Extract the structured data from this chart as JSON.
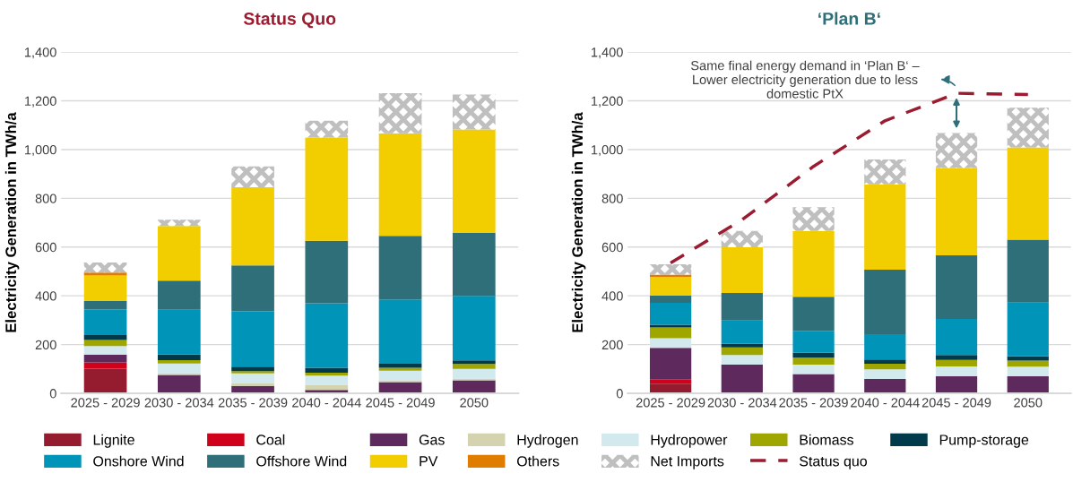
{
  "chart_data": [
    {
      "type": "bar",
      "stacked": true,
      "title": "Status Quo",
      "ylabel": "Electricity Generation in TWh/a",
      "categories": [
        "2025 - 2029",
        "2030 - 2034",
        "2035 - 2039",
        "2040 - 2044",
        "2045 - 2049",
        "2050"
      ],
      "ylim": [
        0,
        1400
      ],
      "yticks": [
        0,
        {
          "value": 200,
          "label": "200"
        },
        {
          "value": 400,
          "label": "400"
        },
        {
          "value": 600,
          "label": "600"
        },
        {
          "value": 800,
          "label": "800"
        },
        {
          "value": 1000,
          "label": "1,000"
        },
        {
          "value": 1200,
          "label": "1,200"
        },
        {
          "value": 1400,
          "label": "1,400"
        }
      ],
      "grid": "y",
      "legend": "bottom",
      "series": [
        {
          "name": "Lignite",
          "color": "#951b2e",
          "values": [
            101,
            0,
            0,
            0,
            0,
            0
          ]
        },
        {
          "name": "Coal",
          "color": "#d0021b",
          "values": [
            26,
            0,
            0,
            0,
            0,
            0
          ]
        },
        {
          "name": "Gas",
          "color": "#5e2a5e",
          "values": [
            32,
            75,
            30,
            14,
            46,
            53
          ]
        },
        {
          "name": "Hydrogen",
          "color": "#d3d3b0",
          "values": [
            0,
            7,
            12,
            21,
            7,
            7
          ]
        },
        {
          "name": "Hydropower",
          "color": "#d2e9ee",
          "values": [
            35,
            40,
            40,
            38,
            40,
            40
          ]
        },
        {
          "name": "Biomass",
          "color": "#9fa600",
          "values": [
            25,
            14,
            9,
            12,
            12,
            20
          ]
        },
        {
          "name": "Pump-storage",
          "color": "#003a4b",
          "values": [
            20,
            23,
            18,
            20,
            16,
            15
          ]
        },
        {
          "name": "Onshore Wind",
          "color": "#0094b8",
          "values": [
            105,
            184,
            227,
            264,
            264,
            265
          ]
        },
        {
          "name": "Offshore Wind",
          "color": "#2e6f7a",
          "values": [
            35,
            119,
            189,
            257,
            261,
            258
          ]
        },
        {
          "name": "PV",
          "color": "#f2ce00",
          "values": [
            104,
            224,
            320,
            423,
            421,
            424
          ]
        },
        {
          "name": "Others",
          "color": "#e07c00",
          "values": [
            12,
            0,
            0,
            0,
            0,
            0
          ]
        },
        {
          "name": "Net Imports",
          "color": "#bfbfbf",
          "values": [
            42,
            26,
            86,
            69,
            164,
            144
          ]
        }
      ]
    },
    {
      "type": "bar",
      "stacked": true,
      "title": "‘Plan B‘",
      "ylabel": "Electricity Generation in TWh/a",
      "categories": [
        "2025 - 2029",
        "2030 - 2034",
        "2035 - 2039",
        "2040 - 2044",
        "2045 - 2049",
        "2050"
      ],
      "ylim": [
        0,
        1400
      ],
      "yticks": [
        0,
        {
          "value": 200,
          "label": "200"
        },
        {
          "value": 400,
          "label": "400"
        },
        {
          "value": 600,
          "label": "600"
        },
        {
          "value": 800,
          "label": "800"
        },
        {
          "value": 1000,
          "label": "1,000"
        },
        {
          "value": 1200,
          "label": "1,200"
        },
        {
          "value": 1400,
          "label": "1,400"
        }
      ],
      "grid": "y",
      "legend": "bottom",
      "annotations": [
        "Same final energy demand in ‘Plan B‘ –\nLower electricity generation due to less\ndomestic PtX"
      ],
      "series": [
        {
          "name": "Lignite",
          "color": "#951b2e",
          "values": [
            40,
            0,
            0,
            0,
            0,
            0
          ]
        },
        {
          "name": "Coal",
          "color": "#d0021b",
          "values": [
            18,
            0,
            0,
            0,
            0,
            0
          ]
        },
        {
          "name": "Gas",
          "color": "#5e2a5e",
          "values": [
            129,
            118,
            79,
            59,
            70,
            70
          ]
        },
        {
          "name": "Hydrogen",
          "color": "#d3d3b0",
          "values": [
            0,
            0,
            0,
            0,
            0,
            0
          ]
        },
        {
          "name": "Hydropower",
          "color": "#d2e9ee",
          "values": [
            39,
            39,
            39,
            39,
            40,
            39
          ]
        },
        {
          "name": "Biomass",
          "color": "#9fa600",
          "values": [
            44,
            31,
            28,
            23,
            27,
            25
          ]
        },
        {
          "name": "Pump-storage",
          "color": "#003a4b",
          "values": [
            11,
            15,
            20,
            18,
            20,
            18
          ]
        },
        {
          "name": "Onshore Wind",
          "color": "#0094b8",
          "values": [
            90,
            96,
            90,
            104,
            148,
            220
          ]
        },
        {
          "name": "Offshore Wind",
          "color": "#2e6f7a",
          "values": [
            31,
            113,
            140,
            264,
            261,
            258
          ]
        },
        {
          "name": "PV",
          "color": "#f2ce00",
          "values": [
            75,
            187,
            270,
            350,
            358,
            379
          ]
        },
        {
          "name": "Others",
          "color": "#e07c00",
          "values": [
            10,
            0,
            0,
            0,
            0,
            0
          ]
        },
        {
          "name": "Net Imports",
          "color": "#bfbfbf",
          "values": [
            42,
            67,
            98,
            102,
            144,
            163
          ]
        },
        {
          "name": "Status quo",
          "type": "line",
          "line_style": "dashed",
          "color": "#9b1b30",
          "values": [
            535,
            712,
            931,
            1118,
            1231,
            1226
          ]
        }
      ]
    }
  ]
}
